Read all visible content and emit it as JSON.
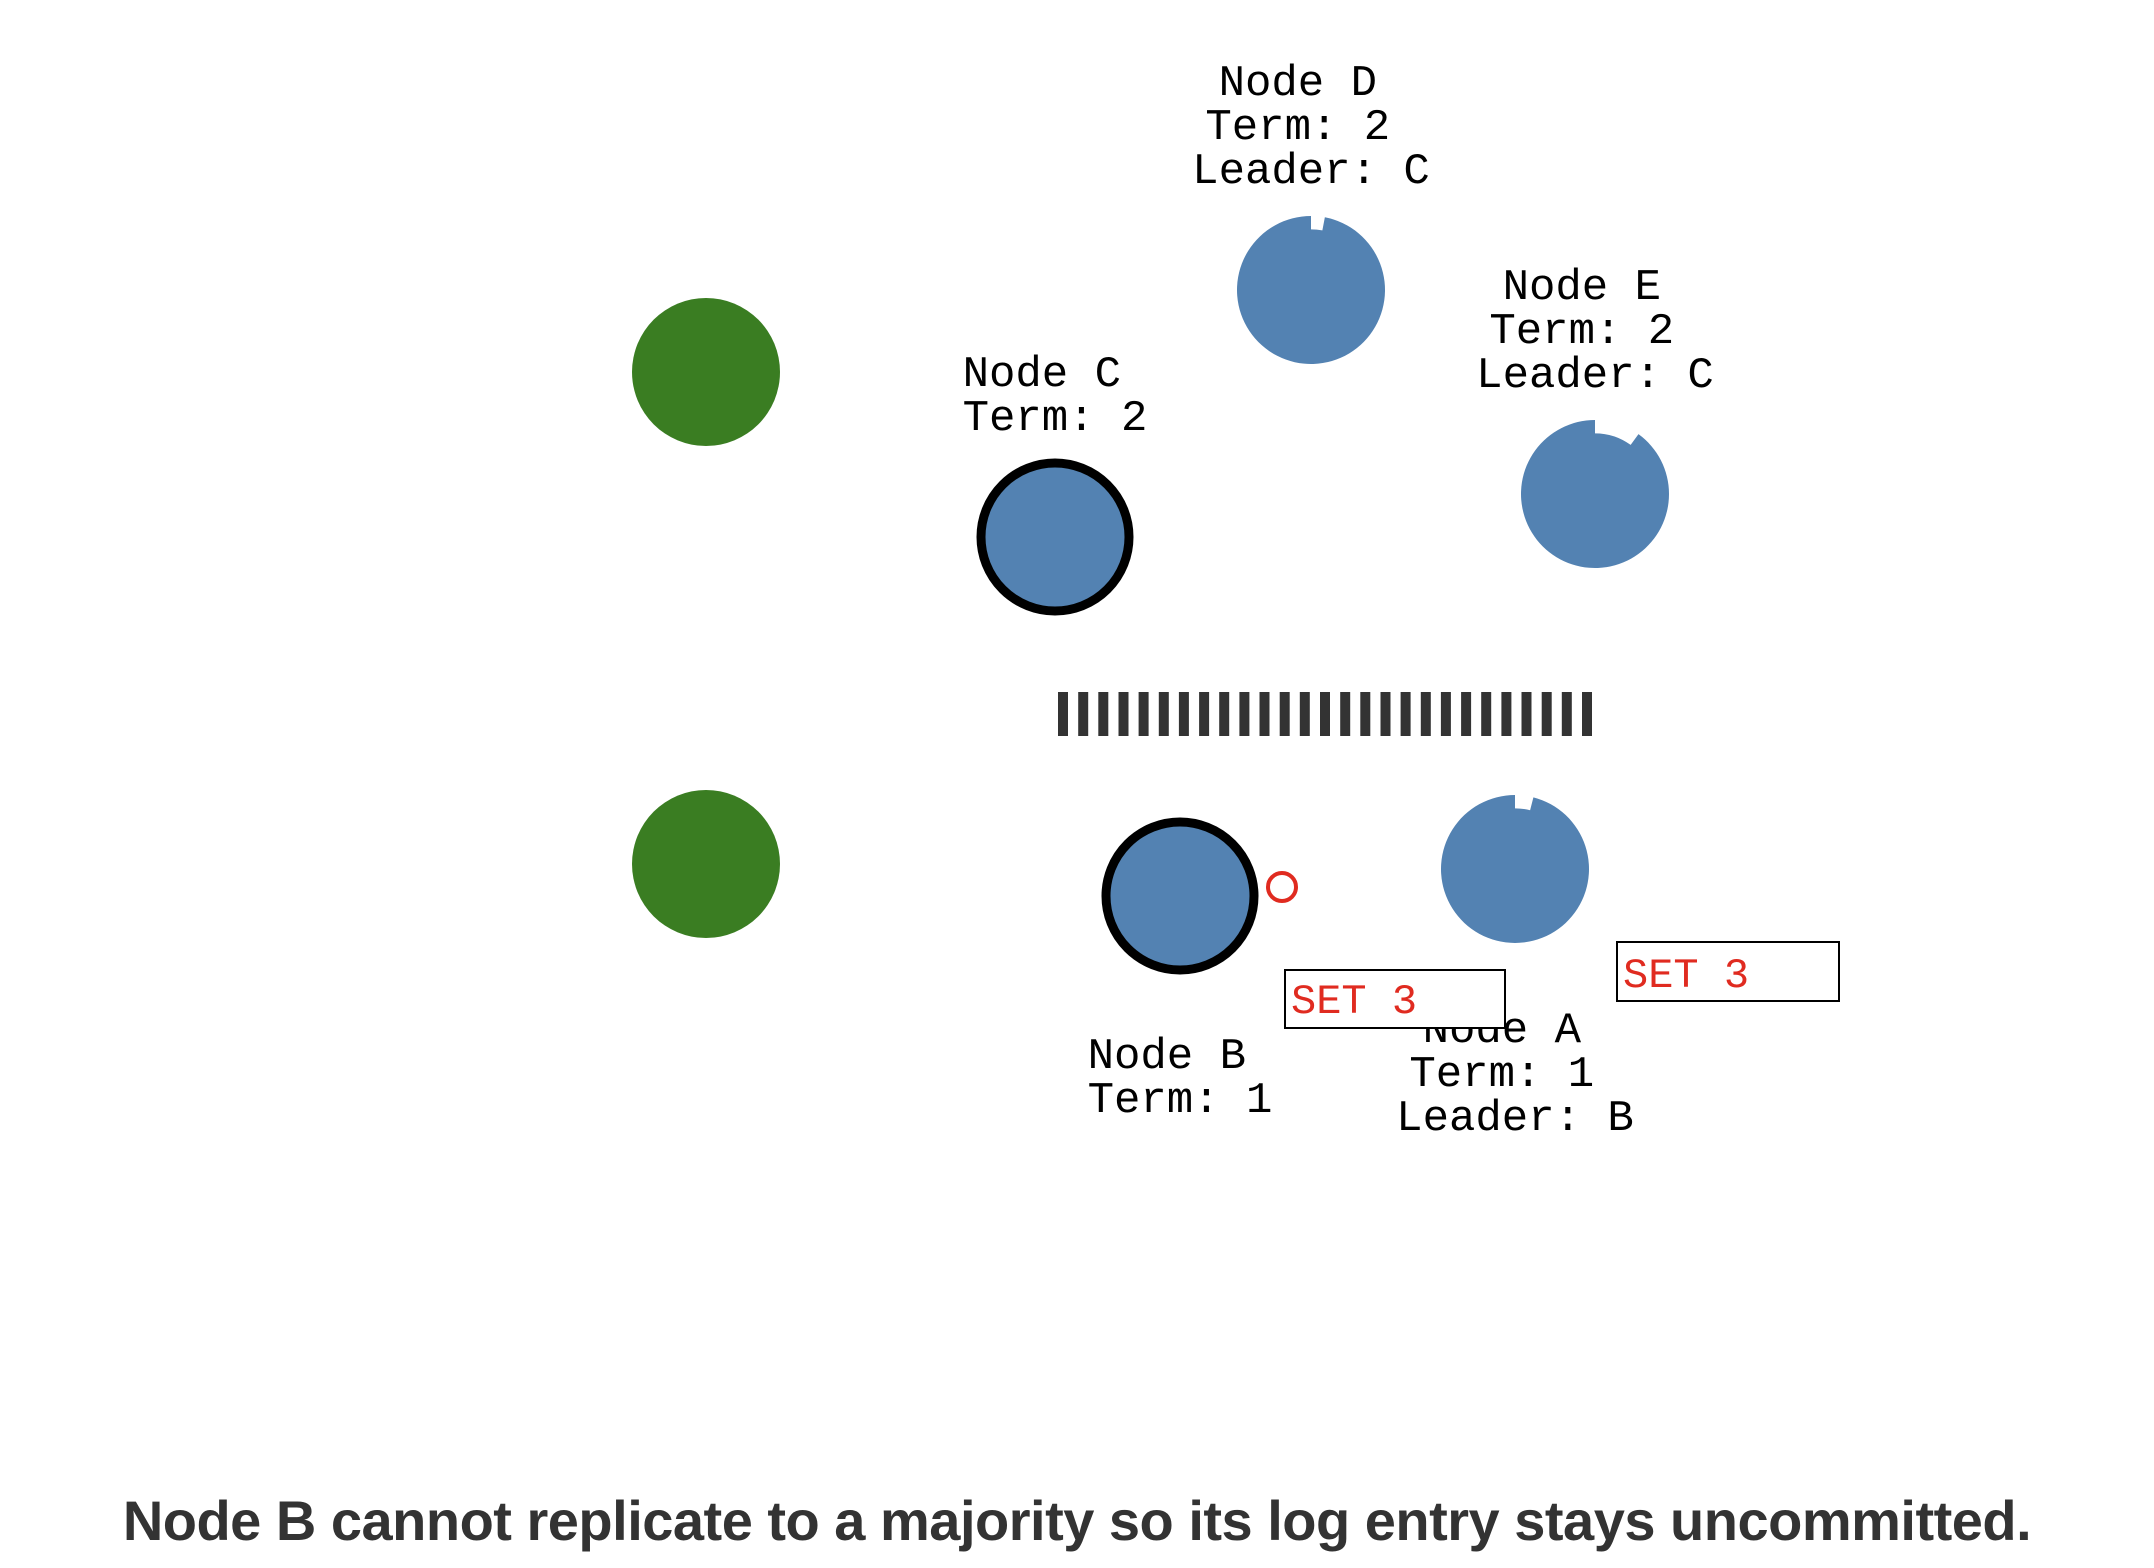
{
  "caption": "Node B cannot replicate to a majority so its log entry stays uncommitted.",
  "colors": {
    "node": "#5382b2",
    "client": "#3a7d22",
    "leader_ring": "#000000",
    "partition": "#333333",
    "message": "#e02b20",
    "entry_text": "#e02b20"
  },
  "clients": [
    {
      "name": "client-top"
    },
    {
      "name": "client-bottom"
    }
  ],
  "nodes": [
    {
      "id": "D",
      "lines": [
        "Node D",
        "Term: 2",
        "Leader: C"
      ],
      "role": "follower",
      "timeout_remaining": 0.97
    },
    {
      "id": "E",
      "lines": [
        "Node E",
        "Term: 2",
        "Leader: C"
      ],
      "role": "follower",
      "timeout_remaining": 0.9
    },
    {
      "id": "C",
      "lines": [
        "Node C",
        "Term: 2"
      ],
      "role": "leader"
    },
    {
      "id": "B",
      "lines": [
        "Node B",
        "Term: 1"
      ],
      "role": "leader"
    },
    {
      "id": "A",
      "lines": [
        "Node A",
        "Term: 1",
        "Leader: B"
      ],
      "role": "follower",
      "timeout_remaining": 0.96
    }
  ],
  "log_entries": [
    {
      "node": "B",
      "text": "SET 3"
    },
    {
      "node": "A",
      "text": "SET 3"
    }
  ],
  "partition_icon": "network-partition-barrier",
  "message_icon": "append-entries-message"
}
